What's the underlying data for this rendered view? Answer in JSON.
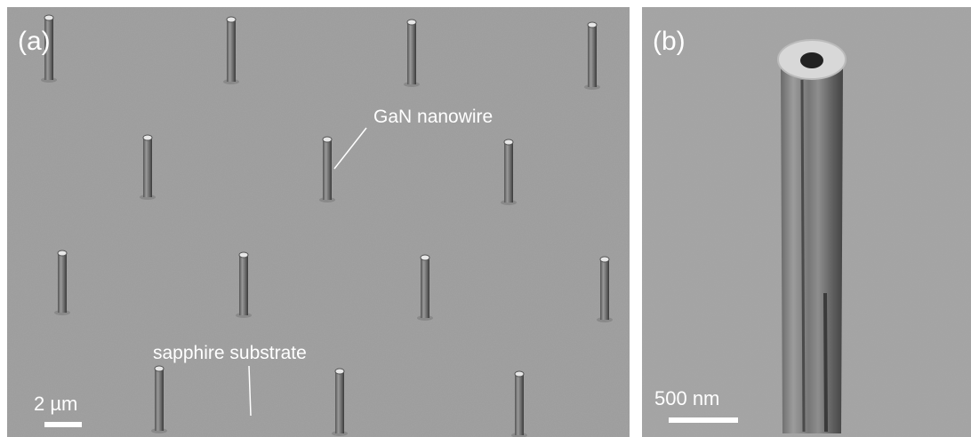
{
  "panels": [
    {
      "label": "(a)",
      "annotations": [
        "GaN nanowire",
        "sapphire substrate"
      ],
      "scale_bar": "2 µm"
    },
    {
      "label": "(b)",
      "scale_bar": "500 nm"
    }
  ]
}
